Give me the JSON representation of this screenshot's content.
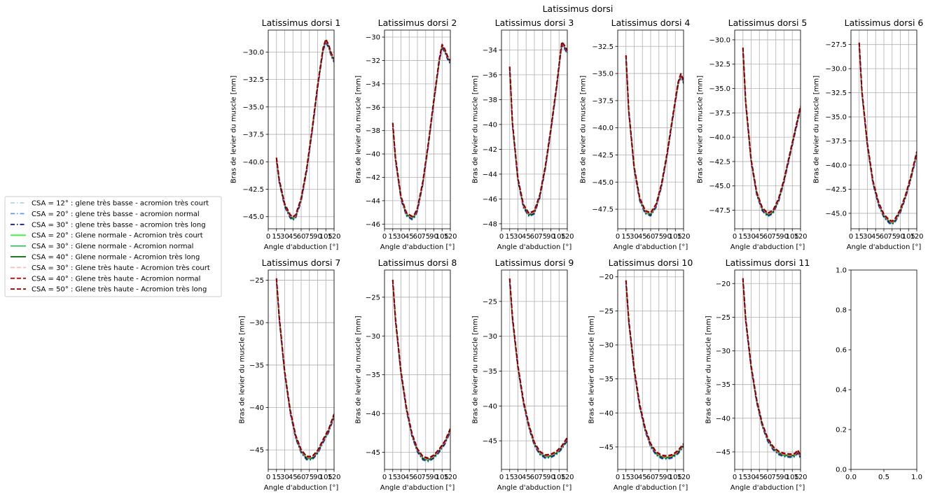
{
  "figure": {
    "suptitle": "Latissimus dorsi"
  },
  "legend": {
    "placement": "left",
    "entries": [
      {
        "label": "CSA = 12° : glene très basse      -  acromion très court",
        "color": "#add8e6",
        "dash": "6,3,1.5,3"
      },
      {
        "label": "CSA = 20° : glene très basse      -  acromion normal",
        "color": "#6495ed",
        "dash": "6,3,1.5,3"
      },
      {
        "label": "CSA = 30° : glene très basse      -  acromion très long",
        "color": "#191970",
        "dash": "6,3,1.5,3"
      },
      {
        "label": "CSA = 20° : Glene normale         -  Acromion très court",
        "color": "#32ff32",
        "dash": ""
      },
      {
        "label": "CSA = 30° : Glene normale         -  Acromion normal",
        "color": "#3cb371",
        "dash": ""
      },
      {
        "label": "CSA = 40° : Glene normale         -  Acromion très long",
        "color": "#006400",
        "dash": ""
      },
      {
        "label": "CSA = 30° : Glene très haute      -  Acromion très court",
        "color": "#ffb6c1",
        "dash": "6,3"
      },
      {
        "label": "CSA = 40° : Glene très haute      -  Acromion normal",
        "color": "#dd0000",
        "dash": "6,3"
      },
      {
        "label": "CSA = 50° : Glene très haute      -  Acromion très long",
        "color": "#8b0000",
        "dash": "6,3"
      }
    ]
  },
  "chart_data": [
    {
      "type": "line",
      "title": "Latissimus dorsi 1",
      "xlabel": "Angle d'abduction [°]",
      "ylabel": "Bras de levier du muscle [mm]",
      "xlim": [
        0,
        120
      ],
      "ylim": [
        -46.1,
        -28.0
      ],
      "grid": true,
      "xticks": [
        0,
        15,
        30,
        45,
        60,
        75,
        90,
        105,
        120
      ],
      "xtick_labels": [
        "0",
        "15",
        "30",
        "45",
        "60",
        "75",
        "90",
        "105",
        "120"
      ],
      "yticks": [
        -45.0,
        -42.5,
        -40.0,
        -37.5,
        -35.0,
        -32.5,
        -30.0
      ],
      "ytick_labels": [
        "−45.0",
        "−42.5",
        "−40.0",
        "−37.5",
        "−35.0",
        "−32.5",
        "−30.0"
      ],
      "x": [
        15,
        20,
        30,
        40,
        45,
        50,
        60,
        70,
        80,
        90,
        100,
        105,
        110,
        115,
        120
      ],
      "y": [
        -39.8,
        -41.8,
        -44.0,
        -45.0,
        -45.2,
        -45.0,
        -43.5,
        -40.8,
        -37.2,
        -33.2,
        -29.8,
        -29.0,
        -29.5,
        -30.3,
        -30.8
      ]
    },
    {
      "type": "line",
      "title": "Latissimus dorsi 2",
      "xlabel": "Angle d'abduction [°]",
      "ylabel": "Bras de levier du muscle [mm]",
      "xlim": [
        0,
        120
      ],
      "ylim": [
        -46.4,
        -29.4
      ],
      "grid": true,
      "xticks": [
        0,
        15,
        30,
        45,
        60,
        75,
        90,
        105,
        120
      ],
      "xtick_labels": [
        "0",
        "15",
        "30",
        "45",
        "60",
        "75",
        "90",
        "105",
        "120"
      ],
      "yticks": [
        -46,
        -44,
        -42,
        -40,
        -38,
        -36,
        -34,
        -32,
        -30
      ],
      "ytick_labels": [
        "−46",
        "−44",
        "−42",
        "−40",
        "−38",
        "−36",
        "−34",
        "−32",
        "−30"
      ],
      "x": [
        15,
        20,
        30,
        40,
        50,
        55,
        60,
        70,
        80,
        90,
        100,
        105,
        110,
        115,
        120
      ],
      "y": [
        -37.5,
        -40.5,
        -43.8,
        -45.2,
        -45.5,
        -45.3,
        -44.8,
        -42.5,
        -39.2,
        -35.5,
        -32.0,
        -30.8,
        -31.2,
        -31.8,
        -32.2
      ]
    },
    {
      "type": "line",
      "title": "Latissimus dorsi 3",
      "xlabel": "Angle d'abduction [°]",
      "ylabel": "Bras de levier du muscle [mm]",
      "xlim": [
        0,
        120
      ],
      "ylim": [
        -48.4,
        -32.4
      ],
      "grid": true,
      "xticks": [
        0,
        15,
        30,
        45,
        60,
        75,
        90,
        105,
        120
      ],
      "xtick_labels": [
        "0",
        "15",
        "30",
        "45",
        "60",
        "75",
        "90",
        "105",
        "120"
      ],
      "yticks": [
        -48,
        -46,
        -44,
        -42,
        -40,
        -38,
        -36,
        -34
      ],
      "ytick_labels": [
        "−48",
        "−46",
        "−44",
        "−42",
        "−40",
        "−38",
        "−36",
        "−34"
      ],
      "x": [
        15,
        20,
        30,
        40,
        50,
        60,
        70,
        80,
        90,
        100,
        110,
        115,
        120
      ],
      "y": [
        -35.5,
        -40.0,
        -44.5,
        -46.6,
        -47.3,
        -47.1,
        -45.8,
        -43.5,
        -40.5,
        -37.2,
        -33.5,
        -33.8,
        -34.2
      ]
    },
    {
      "type": "line",
      "title": "Latissimus dorsi 4",
      "xlabel": "Angle d'abduction [°]",
      "ylabel": "Bras de levier du muscle [mm]",
      "xlim": [
        0,
        120
      ],
      "ylim": [
        -49.3,
        -31.0
      ],
      "grid": true,
      "xticks": [
        0,
        15,
        30,
        45,
        60,
        75,
        90,
        105,
        120
      ],
      "xtick_labels": [
        "0",
        "15",
        "30",
        "45",
        "60",
        "75",
        "90",
        "105",
        "120"
      ],
      "yticks": [
        -47.5,
        -45.0,
        -42.5,
        -40.0,
        -37.5,
        -35.0,
        -32.5
      ],
      "ytick_labels": [
        "−47.5",
        "−45.0",
        "−42.5",
        "−40.0",
        "−37.5",
        "−35.0",
        "−32.5"
      ],
      "x": [
        15,
        20,
        30,
        40,
        50,
        60,
        70,
        80,
        90,
        100,
        110,
        115,
        120
      ],
      "y": [
        -33.5,
        -38.5,
        -43.8,
        -46.6,
        -47.8,
        -48.0,
        -47.2,
        -45.3,
        -42.5,
        -39.2,
        -36.0,
        -35.2,
        -35.8
      ]
    },
    {
      "type": "line",
      "title": "Latissimus dorsi 5",
      "xlabel": "Angle d'abduction [°]",
      "ylabel": "Bras de levier du muscle [mm]",
      "xlim": [
        0,
        120
      ],
      "ylim": [
        -49.4,
        -29.0
      ],
      "grid": true,
      "xticks": [
        0,
        15,
        30,
        45,
        60,
        75,
        90,
        105,
        120
      ],
      "xtick_labels": [
        "0",
        "15",
        "30",
        "45",
        "60",
        "75",
        "90",
        "105",
        "120"
      ],
      "yticks": [
        -47.5,
        -45.0,
        -42.5,
        -40.0,
        -37.5,
        -35.0,
        -32.5,
        -30.0
      ],
      "ytick_labels": [
        "−47.5",
        "−45.0",
        "−42.5",
        "−40.0",
        "−37.5",
        "−35.0",
        "−32.5",
        "−30.0"
      ],
      "x": [
        15,
        20,
        30,
        40,
        50,
        60,
        70,
        80,
        90,
        100,
        110,
        120
      ],
      "y": [
        -31.0,
        -36.5,
        -42.5,
        -45.8,
        -47.4,
        -48.0,
        -47.7,
        -46.5,
        -44.5,
        -42.0,
        -39.5,
        -37.0
      ]
    },
    {
      "type": "line",
      "title": "Latissimus dorsi 6",
      "xlabel": "Angle d'abduction [°]",
      "ylabel": "Bras de levier du muscle [mm]",
      "xlim": [
        0,
        120
      ],
      "ylim": [
        -46.6,
        -26.0
      ],
      "grid": true,
      "xticks": [
        0,
        15,
        30,
        45,
        60,
        75,
        90,
        105,
        120
      ],
      "xtick_labels": [
        "0",
        "15",
        "30",
        "45",
        "60",
        "75",
        "90",
        "105",
        "120"
      ],
      "yticks": [
        -45.0,
        -42.5,
        -40.0,
        -37.5,
        -35.0,
        -32.5,
        -30.0,
        -27.5
      ],
      "ytick_labels": [
        "−45.0",
        "−42.5",
        "−40.0",
        "−37.5",
        "−35.0",
        "−32.5",
        "−30.0",
        "−27.5"
      ],
      "x": [
        15,
        20,
        30,
        40,
        50,
        60,
        70,
        75,
        80,
        90,
        100,
        110,
        120
      ],
      "y": [
        -27.5,
        -32.5,
        -38.0,
        -41.8,
        -44.0,
        -45.3,
        -45.9,
        -46.0,
        -45.8,
        -44.8,
        -43.2,
        -41.2,
        -38.8
      ]
    },
    {
      "type": "line",
      "title": "Latissimus dorsi 7",
      "xlabel": "Angle d'abduction [°]",
      "ylabel": "Bras de levier du muscle [mm]",
      "xlim": [
        0,
        120
      ],
      "ylim": [
        -47.3,
        -23.8
      ],
      "grid": true,
      "xticks": [
        0,
        15,
        30,
        45,
        60,
        75,
        90,
        105,
        120
      ],
      "xtick_labels": [
        "0",
        "15",
        "30",
        "45",
        "60",
        "75",
        "90",
        "105",
        "120"
      ],
      "yticks": [
        -45,
        -40,
        -35,
        -30,
        -25
      ],
      "ytick_labels": [
        "−45",
        "−40",
        "−35",
        "−30",
        "−25"
      ],
      "x": [
        15,
        20,
        30,
        40,
        50,
        60,
        70,
        80,
        90,
        100,
        110,
        120
      ],
      "y": [
        -25.0,
        -29.5,
        -36.0,
        -40.5,
        -43.5,
        -45.2,
        -46.0,
        -46.0,
        -45.3,
        -44.0,
        -42.8,
        -41.0
      ]
    },
    {
      "type": "line",
      "title": "Latissimus dorsi 8",
      "xlabel": "Angle d'abduction [°]",
      "ylabel": "Bras de levier du muscle [mm]",
      "xlim": [
        0,
        120
      ],
      "ylim": [
        -47.2,
        -21.5
      ],
      "grid": true,
      "xticks": [
        0,
        15,
        30,
        45,
        60,
        75,
        90,
        105,
        120
      ],
      "xtick_labels": [
        "0",
        "15",
        "30",
        "45",
        "60",
        "75",
        "90",
        "105",
        "120"
      ],
      "yticks": [
        -45,
        -40,
        -35,
        -30,
        -25
      ],
      "ytick_labels": [
        "−45",
        "−40",
        "−35",
        "−30",
        "−25"
      ],
      "x": [
        15,
        20,
        30,
        40,
        50,
        60,
        70,
        80,
        90,
        100,
        110,
        120
      ],
      "y": [
        -23.0,
        -28.0,
        -34.8,
        -39.5,
        -42.8,
        -44.8,
        -45.8,
        -46.0,
        -45.6,
        -44.8,
        -43.8,
        -42.2
      ]
    },
    {
      "type": "line",
      "title": "Latissimus dorsi 9",
      "xlabel": "Angle d'abduction [°]",
      "ylabel": "Bras de levier du muscle [mm]",
      "xlim": [
        0,
        120
      ],
      "ylim": [
        -49.1,
        -20.5
      ],
      "grid": true,
      "xticks": [
        0,
        15,
        30,
        45,
        60,
        75,
        90,
        105,
        120
      ],
      "xtick_labels": [
        "0",
        "15",
        "30",
        "45",
        "60",
        "75",
        "90",
        "105",
        "120"
      ],
      "yticks": [
        -45,
        -40,
        -35,
        -30,
        -25
      ],
      "ytick_labels": [
        "−45",
        "−40",
        "−35",
        "−30",
        "−25"
      ],
      "x": [
        15,
        20,
        30,
        40,
        50,
        60,
        70,
        80,
        90,
        100,
        110,
        120
      ],
      "y": [
        -22.0,
        -27.5,
        -34.5,
        -39.5,
        -43.0,
        -45.5,
        -46.8,
        -47.3,
        -47.2,
        -46.8,
        -46.0,
        -44.8
      ]
    },
    {
      "type": "line",
      "title": "Latissimus dorsi 10",
      "xlabel": "Angle d'abduction [°]",
      "ylabel": "Bras de levier du muscle [mm]",
      "xlim": [
        0,
        120
      ],
      "ylim": [
        -48.3,
        -19.0
      ],
      "grid": true,
      "xticks": [
        0,
        15,
        30,
        45,
        60,
        75,
        90,
        105,
        120
      ],
      "xtick_labels": [
        "0",
        "15",
        "30",
        "45",
        "60",
        "75",
        "90",
        "105",
        "120"
      ],
      "yticks": [
        -45,
        -40,
        -35,
        -30,
        -25,
        -20
      ],
      "ytick_labels": [
        "−45",
        "−40",
        "−35",
        "−30",
        "−25",
        "−20"
      ],
      "x": [
        15,
        20,
        30,
        40,
        50,
        60,
        70,
        80,
        90,
        100,
        110,
        120
      ],
      "y": [
        -20.8,
        -26.5,
        -33.8,
        -39.0,
        -42.5,
        -44.8,
        -46.0,
        -46.5,
        -46.6,
        -46.4,
        -45.8,
        -44.8
      ]
    },
    {
      "type": "line",
      "title": "Latissimus dorsi 11",
      "xlabel": "Angle d'abduction [°]",
      "ylabel": "Bras de levier du muscle [mm]",
      "xlim": [
        0,
        120
      ],
      "ylim": [
        -47.6,
        -18.0
      ],
      "grid": true,
      "xticks": [
        0,
        15,
        30,
        45,
        60,
        75,
        90,
        105,
        120
      ],
      "xtick_labels": [
        "0",
        "15",
        "30",
        "45",
        "60",
        "75",
        "90",
        "105",
        "120"
      ],
      "yticks": [
        -45,
        -40,
        -35,
        -30,
        -25,
        -20
      ],
      "ytick_labels": [
        "−45",
        "−40",
        "−35",
        "−30",
        "−25",
        "−20"
      ],
      "x": [
        15,
        20,
        30,
        40,
        50,
        60,
        70,
        80,
        90,
        100,
        105,
        110,
        115,
        120
      ],
      "y": [
        -19.5,
        -25.5,
        -32.5,
        -37.5,
        -41.0,
        -43.2,
        -44.5,
        -45.2,
        -45.5,
        -45.6,
        -45.6,
        -45.5,
        -45.0,
        -45.8
      ]
    },
    {
      "type": "line",
      "title": "",
      "xlabel": "",
      "ylabel": "",
      "xlim": [
        0,
        1
      ],
      "ylim": [
        0,
        1
      ],
      "grid": false,
      "xticks": [
        0,
        0.5,
        1
      ],
      "xtick_labels": [
        "0.0",
        "0.5",
        "1.0"
      ],
      "yticks": [
        0,
        0.2,
        0.4,
        0.6,
        0.8,
        1.0
      ],
      "ytick_labels": [
        "0.0",
        "0.2",
        "0.4",
        "0.6",
        "0.8",
        "1.0"
      ],
      "x": [],
      "y": []
    }
  ]
}
